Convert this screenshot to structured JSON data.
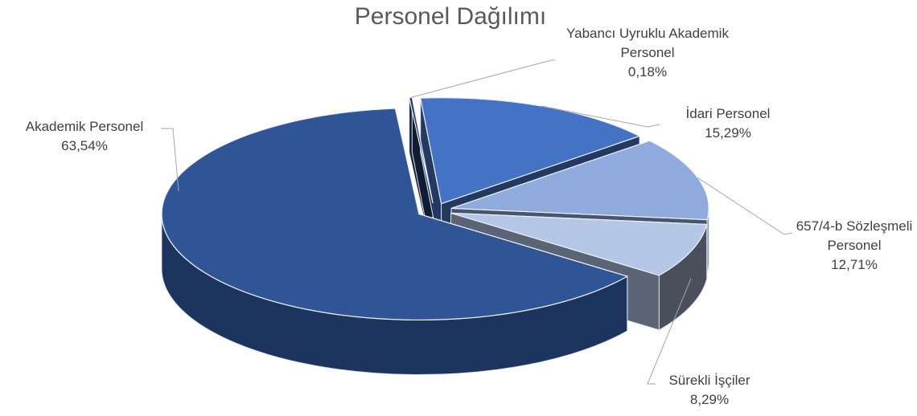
{
  "chart_data": {
    "type": "pie3d",
    "title": "Personel Dağılımı",
    "categories": [
      "Akademik Personel",
      "Yabancı Uyruklu Akademik Personel",
      "İdari Personel",
      "657/4-b Sözleşmeli Personel",
      "Sürekli İşçiler"
    ],
    "values": [
      63.54,
      0.18,
      15.29,
      12.71,
      8.29
    ],
    "value_labels": [
      "63,54%",
      "0,18%",
      "15,29%",
      "12,71%",
      "8,29%"
    ],
    "colors": [
      "#2f5597",
      "#203864",
      "#4472c4",
      "#8faadc",
      "#b4c7e7"
    ]
  }
}
